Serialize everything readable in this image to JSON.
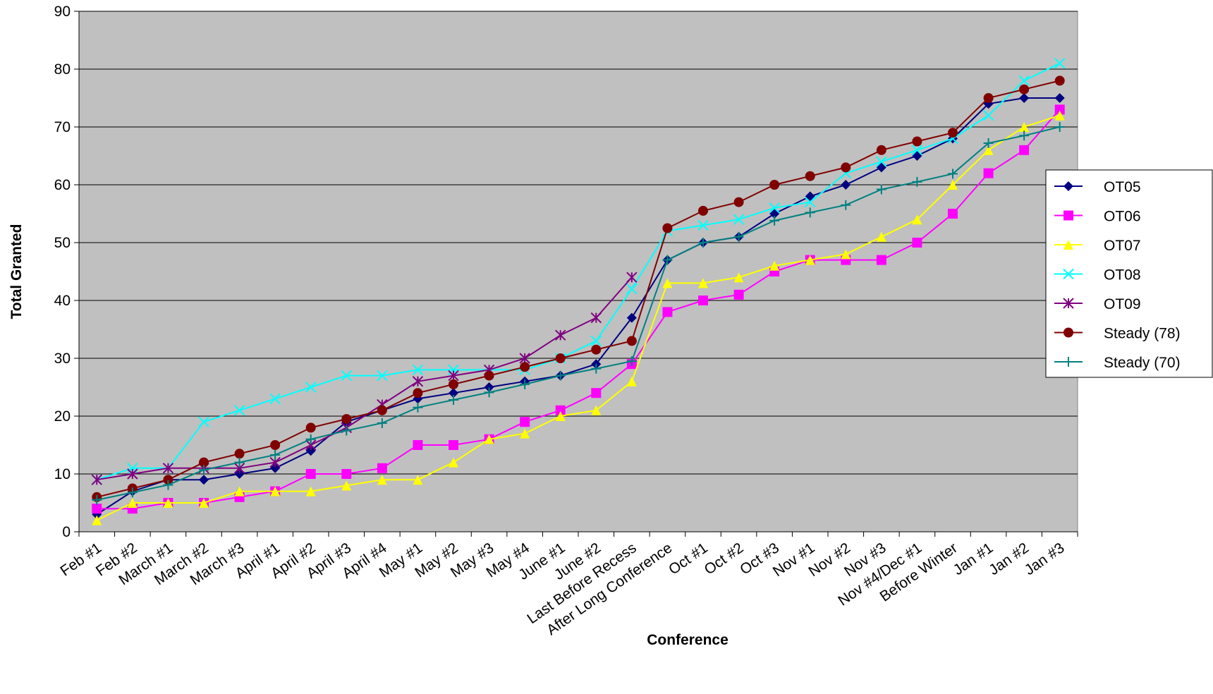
{
  "chart_data": {
    "type": "line",
    "x_label": "Conference",
    "y_label": "Total Granted",
    "categories": [
      "Feb #1",
      "Feb #2",
      "March #1",
      "March #2",
      "March #3",
      "April #1",
      "April #2",
      "April #3",
      "April #4",
      "May #1",
      "May #2",
      "May #3",
      "May #4",
      "June #1",
      "June #2",
      "Last Before Recess",
      "After Long Conference",
      "Oct #1",
      "Oct #2",
      "Oct #3",
      "Nov #1",
      "Nov #2",
      "Nov #3",
      "Nov #4/Dec #1",
      "Before Winter",
      "Jan #1",
      "Jan #2",
      "Jan #3"
    ],
    "ylim": [
      0,
      90
    ],
    "yticks": [
      0,
      10,
      20,
      30,
      40,
      50,
      60,
      70,
      80,
      90
    ],
    "grid": true,
    "legend": "right",
    "series": [
      {
        "name": "OT05",
        "color": "#000080",
        "marker": "diamond",
        "values": [
          3,
          7,
          9,
          9,
          10,
          11,
          14,
          19,
          21,
          23,
          24,
          25,
          26,
          27,
          29,
          37,
          47,
          50,
          51,
          55,
          58,
          60,
          63,
          65,
          68,
          74,
          75,
          75
        ]
      },
      {
        "name": "OT06",
        "color": "#ff00ff",
        "marker": "square",
        "values": [
          4,
          4,
          5,
          5,
          6,
          7,
          10,
          10,
          11,
          15,
          15,
          16,
          19,
          21,
          24,
          29,
          38,
          40,
          41,
          45,
          47,
          47,
          47,
          50,
          55,
          62,
          66,
          73
        ]
      },
      {
        "name": "OT07",
        "color": "#ffff00",
        "marker": "triangle",
        "values": [
          2,
          5,
          5,
          5,
          7,
          7,
          7,
          8,
          9,
          9,
          12,
          16,
          17,
          20,
          21,
          26,
          43,
          43,
          44,
          46,
          47,
          48,
          51,
          54,
          60,
          66,
          70,
          72
        ]
      },
      {
        "name": "OT08",
        "color": "#00ffff",
        "marker": "x",
        "values": [
          9,
          11,
          11,
          19,
          21,
          23,
          25,
          27,
          27,
          28,
          28,
          28,
          28,
          30,
          33,
          42,
          52,
          53,
          54,
          56,
          57,
          62,
          64,
          66,
          68,
          72,
          78,
          81
        ]
      },
      {
        "name": "OT09",
        "color": "#800080",
        "marker": "star",
        "values": [
          9,
          10,
          11,
          11,
          11,
          12,
          15,
          18,
          22,
          26,
          27,
          28,
          30,
          34,
          37,
          44,
          null,
          null,
          null,
          null,
          null,
          null,
          null,
          null,
          null,
          null,
          null,
          null
        ]
      },
      {
        "name": "Steady (78)",
        "color": "#800000",
        "marker": "circle",
        "values": [
          6,
          7.5,
          9,
          12,
          13.5,
          15,
          18,
          19.5,
          21,
          24,
          25.5,
          27,
          28.5,
          30,
          31.5,
          33,
          52.5,
          55.5,
          57,
          60,
          61.5,
          63,
          66,
          67.5,
          69,
          75,
          76.5,
          78
        ]
      },
      {
        "name": "Steady (70)",
        "color": "#008080",
        "marker": "plus",
        "values": [
          5.5,
          6.8,
          8.1,
          10.7,
          12,
          13.3,
          16,
          17.5,
          18.8,
          21.5,
          22.8,
          24.1,
          25.5,
          27,
          28.2,
          29.5,
          47,
          50,
          51,
          53.8,
          55.2,
          56.5,
          59.2,
          60.5,
          61.9,
          67.2,
          68.5,
          70
        ]
      }
    ]
  }
}
